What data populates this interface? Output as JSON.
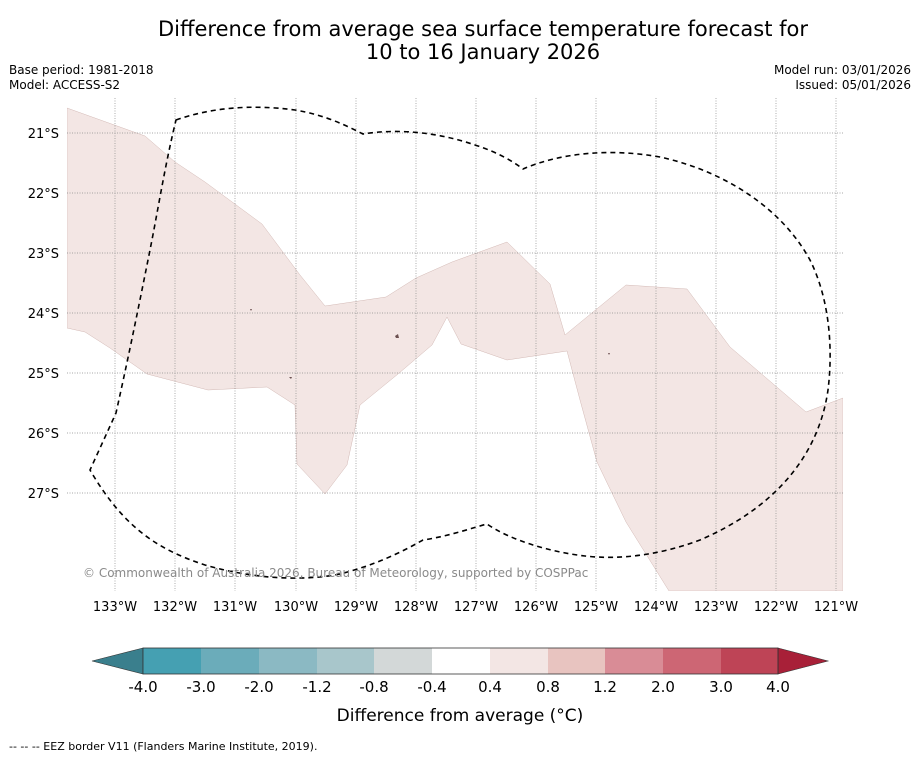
{
  "title": {
    "line1": "Difference from average sea surface temperature forecast for",
    "line2": "10 to 16 January 2026"
  },
  "meta": {
    "base_period": "Base period: 1981-2018",
    "model": "Model: ACCESS-S2",
    "model_run": "Model run: 03/01/2026",
    "issued": "Issued: 05/01/2026"
  },
  "map": {
    "lat_labels": [
      "21°S",
      "22°S",
      "23°S",
      "24°S",
      "25°S",
      "26°S",
      "27°S"
    ],
    "lon_labels": [
      "133°W",
      "132°W",
      "131°W",
      "130°W",
      "129°W",
      "128°W",
      "127°W",
      "126°W",
      "125°W",
      "124°W",
      "123°W",
      "122°W",
      "121°W"
    ],
    "copyright": "© Commonwealth of Australia 2026, Bureau of Meteorology, supported by COSPPac",
    "anomaly_band": "0.4 to 0.8",
    "anomaly_color": "#f3e6e4"
  },
  "colorbar": {
    "ticks": [
      "-4.0",
      "-3.0",
      "-2.0",
      "-1.2",
      "-0.8",
      "-0.4",
      "0.4",
      "0.8",
      "1.2",
      "2.0",
      "3.0",
      "4.0"
    ],
    "colors": [
      "#45a0b2",
      "#6bacba",
      "#8bb9c3",
      "#a8c6cb",
      "#d3d8d8",
      "#ffffff",
      "#f3e6e4",
      "#e8c4c0",
      "#d98c96",
      "#cd6674",
      "#be4456"
    ],
    "low_extension_color": "#3a7f8d",
    "high_extension_color": "#a82038",
    "label": "Difference from average (°C)"
  },
  "footnote": "-- -- -- EEZ border V11 (Flanders Marine Institute, 2019)."
}
